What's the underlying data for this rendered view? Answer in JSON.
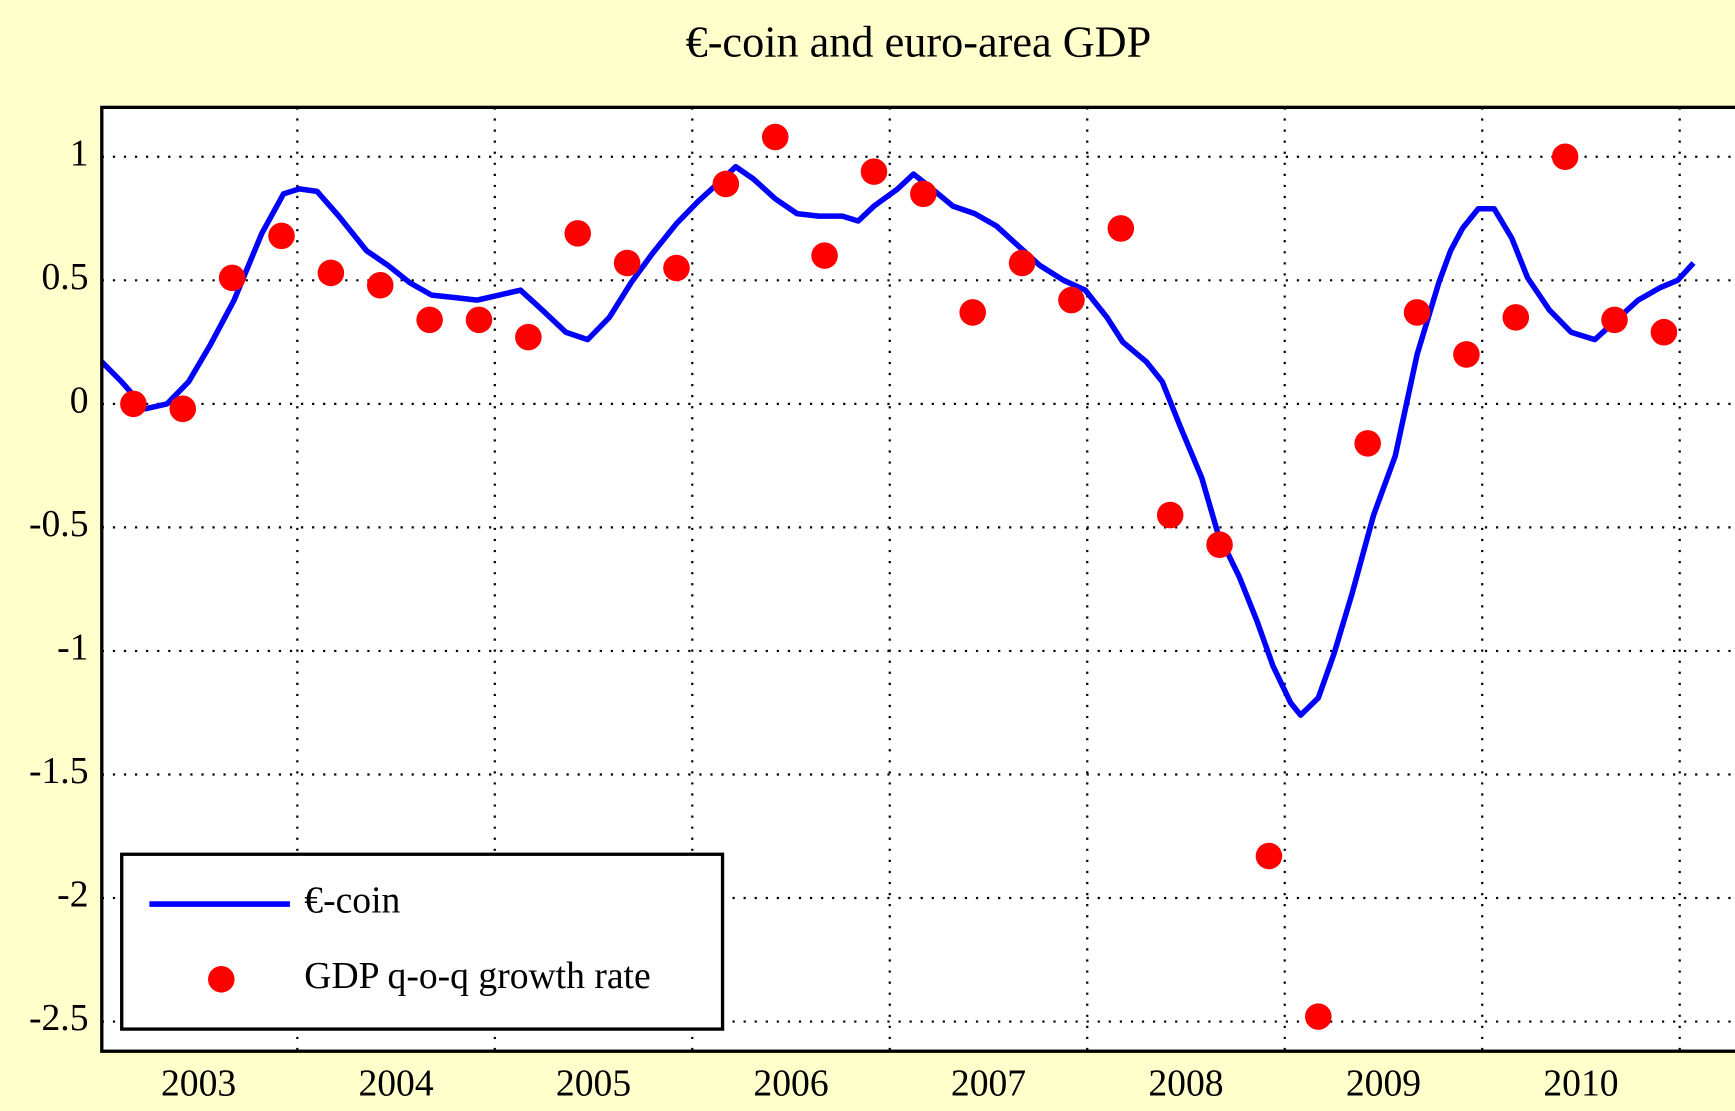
{
  "chart_data": {
    "type": "line",
    "title": "€-coin and euro-area GDP",
    "xlim": [
      2003.01,
      2011.28
    ],
    "xticks": [
      {
        "value": 2003.5,
        "label": "2003"
      },
      {
        "value": 2004.5,
        "label": "2004"
      },
      {
        "value": 2005.5,
        "label": "2005"
      },
      {
        "value": 2006.5,
        "label": "2006"
      },
      {
        "value": 2007.5,
        "label": "2007"
      },
      {
        "value": 2008.5,
        "label": "2008"
      },
      {
        "value": 2009.5,
        "label": "2009"
      },
      {
        "value": 2010.5,
        "label": "2010"
      }
    ],
    "xgrid": [
      2004,
      2005,
      2006,
      2007,
      2008,
      2009,
      2010,
      2011
    ],
    "ylim": [
      -2.62,
      1.2
    ],
    "yticks": [
      1,
      0.5,
      0,
      -0.5,
      -1,
      -1.5,
      -2,
      -2.5
    ],
    "grid": true,
    "legend": "lower left",
    "series": [
      {
        "name": "€-coin",
        "type": "line",
        "color": "#0000ff",
        "x": [
          2003.01,
          2003.11,
          2003.23,
          2003.34,
          2003.45,
          2003.56,
          2003.68,
          2003.82,
          2003.93,
          2004.01,
          2004.1,
          2004.21,
          2004.35,
          2004.46,
          2004.57,
          2004.68,
          2004.8,
          2004.91,
          2005.02,
          2005.13,
          2005.24,
          2005.36,
          2005.47,
          2005.58,
          2005.69,
          2005.8,
          2005.92,
          2006.03,
          2006.14,
          2006.22,
          2006.31,
          2006.42,
          2006.53,
          2006.64,
          2006.76,
          2006.84,
          2006.92,
          2007.04,
          2007.12,
          2007.2,
          2007.32,
          2007.43,
          2007.54,
          2007.65,
          2007.76,
          2007.88,
          2007.99,
          2008.1,
          2008.18,
          2008.3,
          2008.38,
          2008.47,
          2008.58,
          2008.66,
          2008.77,
          2008.86,
          2008.94,
          2009.03,
          2009.08,
          2009.17,
          2009.25,
          2009.34,
          2009.45,
          2009.56,
          2009.67,
          2009.78,
          2009.84,
          2009.9,
          2009.98,
          2010.06,
          2010.15,
          2010.23,
          2010.34,
          2010.45,
          2010.57,
          2010.68,
          2010.79,
          2010.9,
          2010.99,
          2011.07
        ],
        "values": [
          0.17,
          0.09,
          -0.02,
          0.0,
          0.09,
          0.24,
          0.42,
          0.69,
          0.85,
          0.87,
          0.86,
          0.76,
          0.62,
          0.56,
          0.49,
          0.44,
          0.43,
          0.42,
          0.44,
          0.46,
          0.38,
          0.29,
          0.26,
          0.35,
          0.49,
          0.61,
          0.73,
          0.82,
          0.9,
          0.96,
          0.91,
          0.83,
          0.77,
          0.76,
          0.76,
          0.74,
          0.8,
          0.87,
          0.93,
          0.88,
          0.8,
          0.77,
          0.72,
          0.64,
          0.56,
          0.5,
          0.46,
          0.35,
          0.25,
          0.17,
          0.09,
          -0.09,
          -0.3,
          -0.52,
          -0.7,
          -0.88,
          -1.06,
          -1.21,
          -1.26,
          -1.19,
          -1.01,
          -0.77,
          -0.45,
          -0.21,
          0.2,
          0.49,
          0.62,
          0.71,
          0.79,
          0.79,
          0.67,
          0.51,
          0.38,
          0.29,
          0.26,
          0.34,
          0.42,
          0.47,
          0.5,
          0.57
        ]
      },
      {
        "name": "GDP q-o-q growth rate",
        "type": "scatter",
        "color": "#ff0000",
        "x": [
          2003.17,
          2003.42,
          2003.67,
          2003.92,
          2004.17,
          2004.42,
          2004.67,
          2004.92,
          2005.17,
          2005.42,
          2005.67,
          2005.92,
          2006.17,
          2006.42,
          2006.67,
          2006.92,
          2007.17,
          2007.42,
          2007.67,
          2007.92,
          2008.17,
          2008.42,
          2008.67,
          2008.92,
          2009.17,
          2009.42,
          2009.67,
          2009.92,
          2010.17,
          2010.42,
          2010.67,
          2010.92
        ],
        "values": [
          0.0,
          -0.02,
          0.51,
          0.68,
          0.53,
          0.48,
          0.34,
          0.34,
          0.27,
          0.69,
          0.57,
          0.55,
          0.89,
          1.08,
          0.6,
          0.94,
          0.85,
          0.37,
          0.57,
          0.42,
          0.71,
          -0.45,
          -0.57,
          -1.83,
          -2.48,
          -0.16,
          0.37,
          0.2,
          0.35,
          1.0,
          0.34,
          0.29
        ]
      }
    ]
  }
}
